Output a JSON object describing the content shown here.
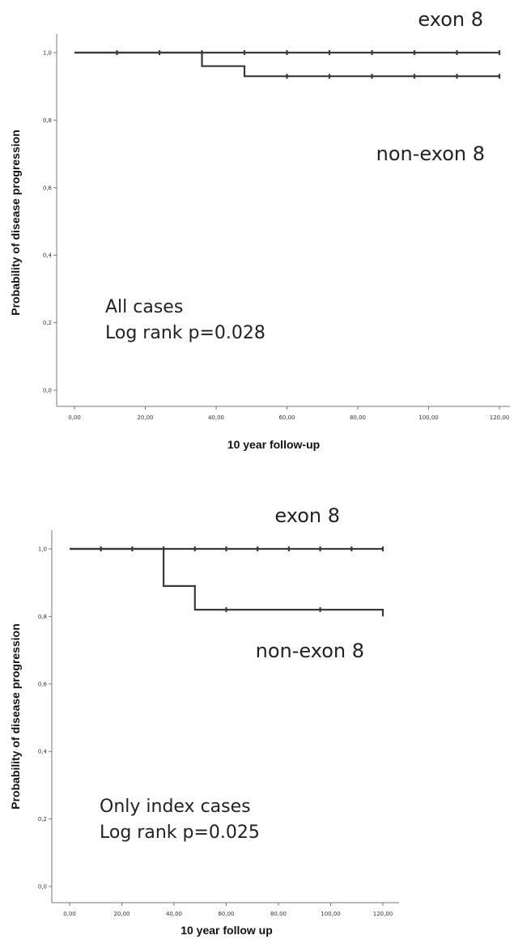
{
  "chart_data": [
    {
      "type": "line",
      "step": true,
      "title": "",
      "xlabel": "10 year follow-up",
      "ylabel": "Probability of disease progression",
      "x_ticks": [
        "0,00",
        "20,00",
        "40,00",
        "60,00",
        "80,00",
        "100,00",
        "120,00"
      ],
      "y_ticks": [
        "0,0",
        "0,2",
        "0,4",
        "0,6",
        "0,8",
        "1,0"
      ],
      "xlim": [
        0,
        120
      ],
      "ylim": [
        0,
        1
      ],
      "grid": false,
      "note_lines": [
        "All cases",
        "Log rank p=0.028"
      ],
      "series": [
        {
          "name": "exon 8",
          "x": [
            0,
            120
          ],
          "y": [
            1.0,
            1.0
          ],
          "censored_x": [
            12,
            24,
            36,
            48,
            60,
            72,
            84,
            96,
            108,
            120
          ]
        },
        {
          "name": "non-exon 8",
          "x": [
            0,
            36,
            36,
            48,
            48,
            120
          ],
          "y": [
            1.0,
            1.0,
            0.96,
            0.96,
            0.93,
            0.93
          ],
          "censored_x": [
            60,
            72,
            84,
            96,
            108,
            120
          ]
        }
      ]
    },
    {
      "type": "line",
      "step": true,
      "title": "",
      "xlabel": "10 year follow up",
      "ylabel": "Probability of disease progression",
      "x_ticks": [
        "0,00",
        "20,00",
        "40,00",
        "60,00",
        "80,00",
        "100,00",
        "120,00"
      ],
      "y_ticks": [
        "0,0",
        "0,2",
        "0,4",
        "0,6",
        "0,8",
        "1,0"
      ],
      "xlim": [
        0,
        120
      ],
      "ylim": [
        0,
        1
      ],
      "grid": false,
      "note_lines": [
        "Only index cases",
        "Log rank p=0.025"
      ],
      "series": [
        {
          "name": "exon 8",
          "x": [
            0,
            120
          ],
          "y": [
            1.0,
            1.0
          ],
          "censored_x": [
            12,
            24,
            36,
            48,
            60,
            72,
            84,
            96,
            108,
            120
          ]
        },
        {
          "name": "non-exon 8",
          "x": [
            0,
            36,
            36,
            48,
            48,
            120,
            120
          ],
          "y": [
            1.0,
            1.0,
            0.89,
            0.89,
            0.82,
            0.82,
            0.8
          ],
          "censored_x": [
            60,
            96
          ]
        }
      ]
    }
  ],
  "style": {
    "line_color": "#3a3a3a",
    "axis_color": "#777777"
  }
}
